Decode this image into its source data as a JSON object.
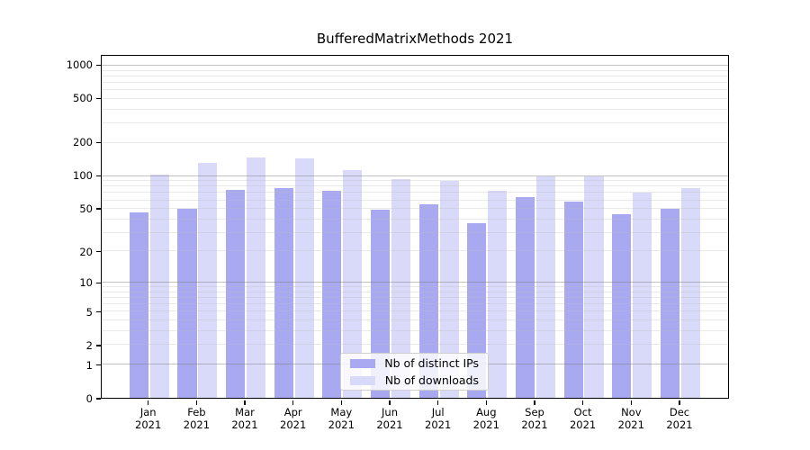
{
  "chart_data": {
    "type": "bar",
    "title": "BufferedMatrixMethods 2021",
    "scale": "log1p",
    "categories": [
      "Jan",
      "Feb",
      "Mar",
      "Apr",
      "May",
      "Jun",
      "Jul",
      "Aug",
      "Sep",
      "Oct",
      "Nov",
      "Dec"
    ],
    "year": "2021",
    "series": [
      {
        "name": "Nb of distinct IPs",
        "color": "#a9a9f2",
        "values": [
          46,
          50,
          75,
          78,
          74,
          49,
          55,
          37,
          64,
          58,
          45,
          50
        ]
      },
      {
        "name": "Nb of downloads",
        "color": "#d9d9fa",
        "values": [
          103,
          131,
          148,
          145,
          113,
          93,
          91,
          73,
          100,
          100,
          70,
          78
        ]
      }
    ],
    "yticks": [
      0,
      1,
      2,
      5,
      10,
      20,
      50,
      100,
      200,
      500,
      1000
    ],
    "ylim": [
      0,
      1233
    ],
    "major_gridlines": [
      1,
      10,
      100,
      1000
    ],
    "grid": "on",
    "legend_position": "bottom-center"
  }
}
